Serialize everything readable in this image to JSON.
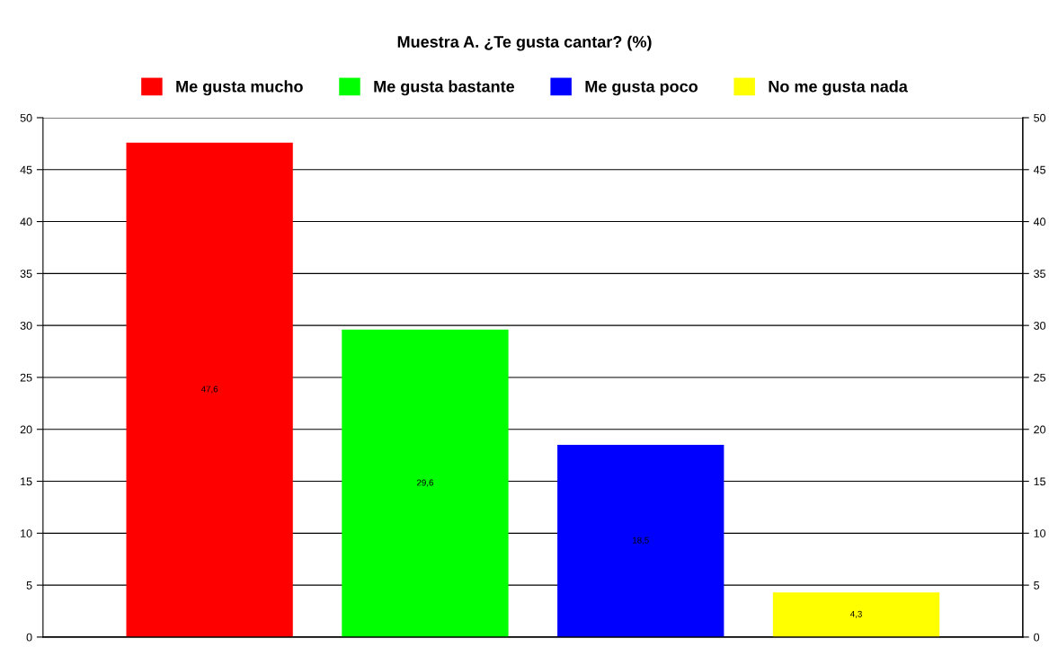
{
  "chart_data": {
    "type": "bar",
    "title": "Muestra A. ¿Te gusta cantar? (%)",
    "categories": [
      null
    ],
    "series": [
      {
        "name": "Me gusta mucho",
        "color": "#ff0000",
        "values": [
          47.6
        ],
        "value_labels": [
          "47,6"
        ]
      },
      {
        "name": "Me gusta bastante",
        "color": "#00ff00",
        "values": [
          29.6
        ],
        "value_labels": [
          "29,6"
        ]
      },
      {
        "name": "Me gusta poco",
        "color": "#0000ff",
        "values": [
          18.5
        ],
        "value_labels": [
          "18,5"
        ]
      },
      {
        "name": "No me gusta nada",
        "color": "#ffff00",
        "values": [
          4.3
        ],
        "value_labels": [
          "4,3"
        ]
      }
    ],
    "ylim": [
      0,
      50
    ],
    "yticks": [
      0,
      5,
      10,
      15,
      20,
      25,
      30,
      35,
      40,
      45,
      50
    ],
    "y2lim": [
      0,
      50
    ],
    "y2ticks": [
      0,
      5,
      10,
      15,
      20,
      25,
      30,
      35,
      40,
      45,
      50
    ],
    "grid": "y",
    "legend": "top"
  }
}
